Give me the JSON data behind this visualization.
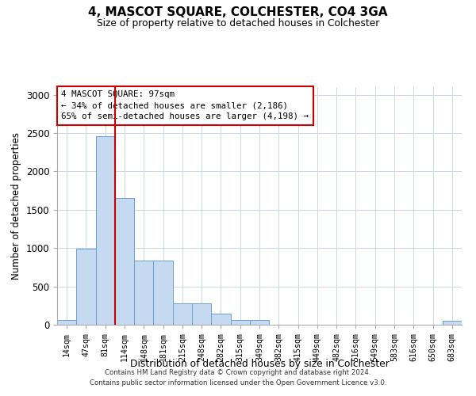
{
  "title": "4, MASCOT SQUARE, COLCHESTER, CO4 3GA",
  "subtitle": "Size of property relative to detached houses in Colchester",
  "xlabel": "Distribution of detached houses by size in Colchester",
  "ylabel": "Number of detached properties",
  "bar_labels": [
    "14sqm",
    "47sqm",
    "81sqm",
    "114sqm",
    "148sqm",
    "181sqm",
    "215sqm",
    "248sqm",
    "282sqm",
    "315sqm",
    "349sqm",
    "382sqm",
    "415sqm",
    "449sqm",
    "482sqm",
    "516sqm",
    "549sqm",
    "583sqm",
    "616sqm",
    "650sqm",
    "683sqm"
  ],
  "bar_values": [
    60,
    990,
    2460,
    1650,
    840,
    840,
    280,
    280,
    140,
    60,
    60,
    0,
    0,
    0,
    0,
    0,
    0,
    0,
    0,
    0,
    50
  ],
  "bar_color": "#c5d9f0",
  "bar_edge_color": "#6b9fd4",
  "vline_color": "#cc0000",
  "annotation_box_color": "#cc0000",
  "annotation_line1": "4 MASCOT SQUARE: 97sqm",
  "annotation_line2": "← 34% of detached houses are smaller (2,186)",
  "annotation_line3": "65% of semi-detached houses are larger (4,198) →",
  "grid_color": "#c8d8e8",
  "ylim": [
    0,
    3100
  ],
  "yticks": [
    0,
    500,
    1000,
    1500,
    2000,
    2500,
    3000
  ],
  "footer1": "Contains HM Land Registry data © Crown copyright and database right 2024.",
  "footer2": "Contains public sector information licensed under the Open Government Licence v3.0."
}
